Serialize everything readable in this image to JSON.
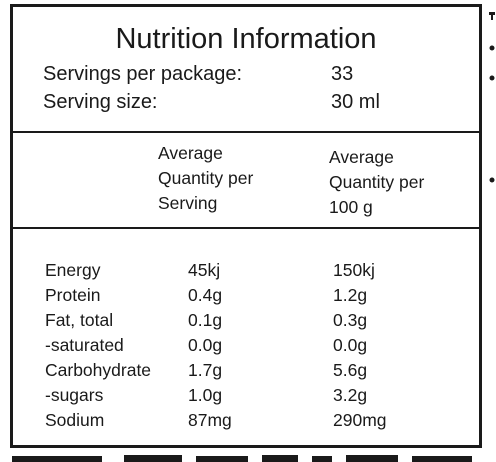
{
  "panel": {
    "title": "Nutrition Information",
    "servings_label": "Servings per package:",
    "servings_value": "33",
    "serving_size_label": "Serving size:",
    "serving_size_value": "30 ml"
  },
  "columns": {
    "per_serving": [
      "Average",
      "Quantity per",
      "Serving"
    ],
    "per_100": [
      "Average",
      "Quantity per",
      "100 g"
    ]
  },
  "rows": [
    {
      "name": "Energy",
      "serving": "45kj",
      "per100": "150kj"
    },
    {
      "name": "Protein",
      "serving": "0.4g",
      "per100": "1.2g"
    },
    {
      "name": "Fat, total",
      "serving": "0.1g",
      "per100": "0.3g"
    },
    {
      "name": "-saturated",
      "serving": "0.0g",
      "per100": "0.0g"
    },
    {
      "name": "Carbohydrate",
      "serving": "1.7g",
      "per100": "5.6g"
    },
    {
      "name": "-sugars",
      "serving": "1.0g",
      "per100": "3.2g"
    },
    {
      "name": "Sodium",
      "serving": "87mg",
      "per100": "290mg"
    }
  ]
}
